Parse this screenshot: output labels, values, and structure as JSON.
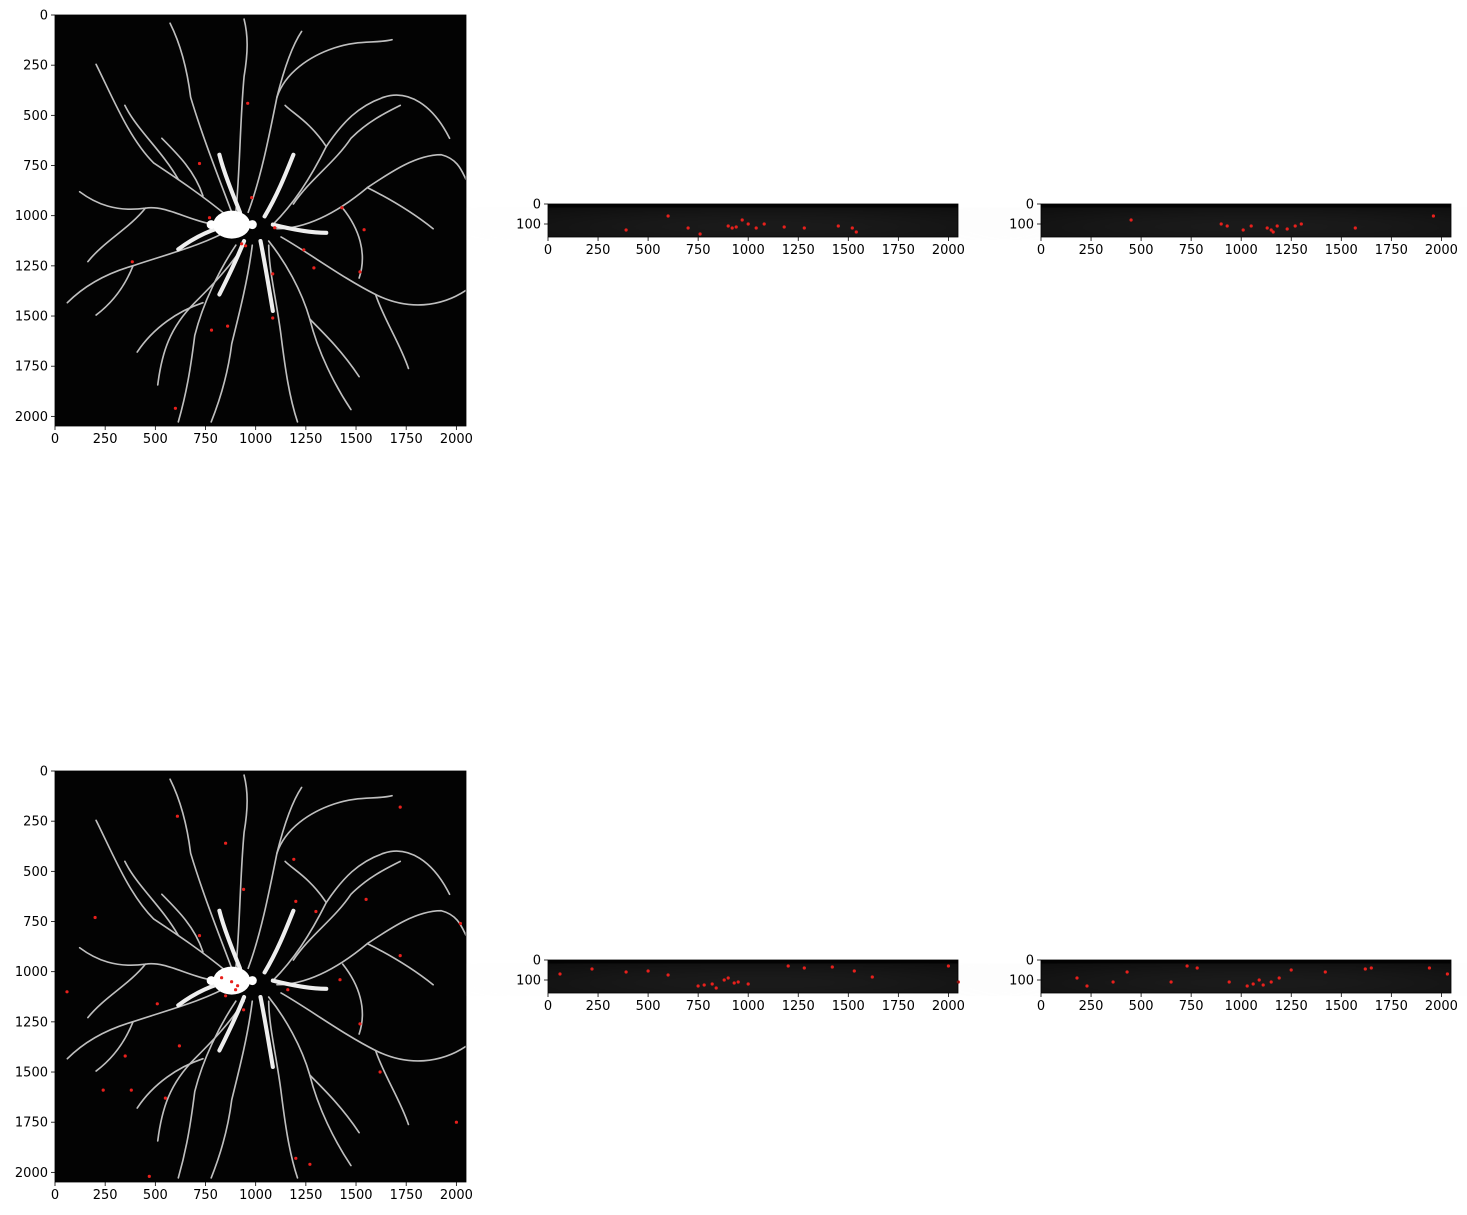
{
  "figure": {
    "background": "#ffffff",
    "image_background": "#030303",
    "neuron_color": "#f2f2f2",
    "marker_color": "#e8201c",
    "axis_color": "#000000"
  },
  "chart_data": [
    {
      "type": "scatter",
      "view": "xy",
      "row": 1,
      "xlim": [
        0,
        2048
      ],
      "ylim": [
        2048,
        0
      ],
      "xticks": [
        0,
        250,
        500,
        750,
        1000,
        1250,
        1500,
        1750,
        2000
      ],
      "yticks": [
        0,
        250,
        500,
        750,
        1000,
        1250,
        1500,
        1750,
        2000
      ],
      "points": [
        [
          960,
          440
        ],
        [
          720,
          740
        ],
        [
          770,
          1010
        ],
        [
          980,
          910
        ],
        [
          930,
          1140
        ],
        [
          950,
          1150
        ],
        [
          385,
          1230
        ],
        [
          1430,
          960
        ],
        [
          1540,
          1070
        ],
        [
          1095,
          1060
        ],
        [
          1240,
          1170
        ],
        [
          1290,
          1260
        ],
        [
          1520,
          1280
        ],
        [
          1085,
          1290
        ],
        [
          1085,
          1510
        ],
        [
          860,
          1550
        ],
        [
          780,
          1570
        ],
        [
          600,
          1960
        ]
      ]
    },
    {
      "type": "scatter",
      "view": "xz",
      "row": 1,
      "xlim": [
        0,
        2048
      ],
      "ylim": [
        165,
        0
      ],
      "xticks": [
        0,
        250,
        500,
        750,
        1000,
        1250,
        1500,
        1750,
        2000
      ],
      "yticks": [
        0,
        100
      ],
      "points": [
        [
          390,
          130
        ],
        [
          600,
          60
        ],
        [
          700,
          120
        ],
        [
          760,
          150
        ],
        [
          900,
          110
        ],
        [
          920,
          120
        ],
        [
          940,
          115
        ],
        [
          970,
          80
        ],
        [
          1000,
          100
        ],
        [
          1040,
          120
        ],
        [
          1080,
          100
        ],
        [
          1180,
          115
        ],
        [
          1280,
          120
        ],
        [
          1450,
          110
        ],
        [
          1520,
          120
        ],
        [
          1540,
          140
        ]
      ]
    },
    {
      "type": "scatter",
      "view": "yz",
      "row": 1,
      "xlim": [
        0,
        2048
      ],
      "ylim": [
        165,
        0
      ],
      "xticks": [
        0,
        250,
        500,
        750,
        1000,
        1250,
        1500,
        1750,
        2000
      ],
      "yticks": [
        0,
        100
      ],
      "points": [
        [
          450,
          80
        ],
        [
          900,
          100
        ],
        [
          930,
          110
        ],
        [
          1010,
          130
        ],
        [
          1050,
          110
        ],
        [
          1130,
          120
        ],
        [
          1150,
          130
        ],
        [
          1160,
          140
        ],
        [
          1180,
          110
        ],
        [
          1230,
          125
        ],
        [
          1270,
          110
        ],
        [
          1300,
          100
        ],
        [
          1570,
          120
        ],
        [
          1960,
          60
        ]
      ]
    },
    {
      "type": "scatter",
      "view": "xy",
      "row": 2,
      "xlim": [
        0,
        2048
      ],
      "ylim": [
        2048,
        0
      ],
      "xticks": [
        0,
        250,
        500,
        750,
        1000,
        1250,
        1500,
        1750,
        2000
      ],
      "yticks": [
        0,
        250,
        500,
        750,
        1000,
        1250,
        1500,
        1750,
        2000
      ],
      "points": [
        [
          1720,
          180
        ],
        [
          610,
          225
        ],
        [
          850,
          360
        ],
        [
          1190,
          440
        ],
        [
          940,
          590
        ],
        [
          1200,
          650
        ],
        [
          1300,
          700
        ],
        [
          1550,
          640
        ],
        [
          200,
          730
        ],
        [
          720,
          820
        ],
        [
          1720,
          920
        ],
        [
          1420,
          1040
        ],
        [
          60,
          1100
        ],
        [
          830,
          1030
        ],
        [
          880,
          1050
        ],
        [
          910,
          1070
        ],
        [
          900,
          1090
        ],
        [
          850,
          1120
        ],
        [
          1160,
          1090
        ],
        [
          510,
          1160
        ],
        [
          940,
          1190
        ],
        [
          1520,
          1260
        ],
        [
          620,
          1370
        ],
        [
          350,
          1420
        ],
        [
          240,
          1590
        ],
        [
          1620,
          1500
        ],
        [
          380,
          1590
        ],
        [
          550,
          1630
        ],
        [
          1200,
          1930
        ],
        [
          1270,
          1960
        ],
        [
          470,
          2020
        ],
        [
          2000,
          1750
        ],
        [
          2020,
          760
        ]
      ]
    },
    {
      "type": "scatter",
      "view": "xz",
      "row": 2,
      "xlim": [
        0,
        2048
      ],
      "ylim": [
        165,
        0
      ],
      "xticks": [
        0,
        250,
        500,
        750,
        1000,
        1250,
        1500,
        1750,
        2000
      ],
      "yticks": [
        0,
        100
      ],
      "points": [
        [
          60,
          70
        ],
        [
          220,
          45
        ],
        [
          390,
          60
        ],
        [
          500,
          55
        ],
        [
          600,
          75
        ],
        [
          750,
          130
        ],
        [
          780,
          125
        ],
        [
          820,
          120
        ],
        [
          840,
          140
        ],
        [
          880,
          100
        ],
        [
          900,
          90
        ],
        [
          930,
          115
        ],
        [
          950,
          110
        ],
        [
          1000,
          120
        ],
        [
          1200,
          30
        ],
        [
          1280,
          40
        ],
        [
          1420,
          35
        ],
        [
          1530,
          55
        ],
        [
          1620,
          85
        ],
        [
          2000,
          30
        ],
        [
          2050,
          110
        ]
      ]
    },
    {
      "type": "scatter",
      "view": "yz",
      "row": 2,
      "xlim": [
        0,
        2048
      ],
      "ylim": [
        165,
        0
      ],
      "xticks": [
        0,
        250,
        500,
        750,
        1000,
        1250,
        1500,
        1750,
        2000
      ],
      "yticks": [
        0,
        100
      ],
      "points": [
        [
          180,
          90
        ],
        [
          230,
          130
        ],
        [
          360,
          110
        ],
        [
          430,
          60
        ],
        [
          650,
          110
        ],
        [
          730,
          30
        ],
        [
          780,
          40
        ],
        [
          940,
          110
        ],
        [
          1030,
          130
        ],
        [
          1060,
          120
        ],
        [
          1090,
          100
        ],
        [
          1110,
          125
        ],
        [
          1150,
          110
        ],
        [
          1190,
          90
        ],
        [
          1250,
          50
        ],
        [
          1420,
          60
        ],
        [
          1620,
          45
        ],
        [
          1650,
          40
        ],
        [
          1940,
          40
        ],
        [
          2030,
          70
        ]
      ]
    }
  ]
}
